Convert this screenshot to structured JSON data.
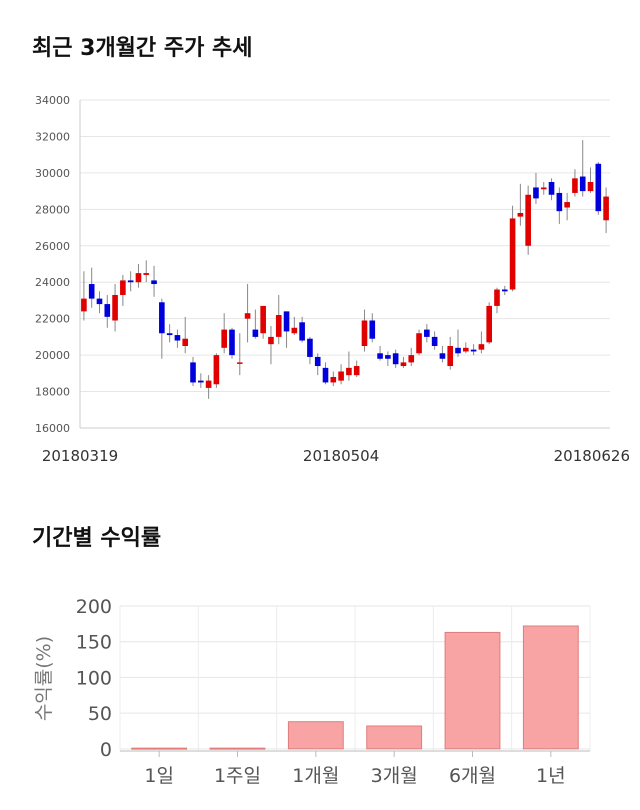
{
  "sections": {
    "price_title": "최근 3개월간 주가 추세",
    "return_title": "기간별 수익률"
  },
  "chart_data": [
    {
      "type": "candlestick",
      "title": "최근 3개월간 주가 추세",
      "ylim": [
        16000,
        34000
      ],
      "yticks": [
        16000,
        18000,
        20000,
        22000,
        24000,
        26000,
        28000,
        30000,
        32000,
        34000
      ],
      "x_tick_labels": [
        "20180319",
        "20180504",
        "20180626"
      ],
      "x_tick_index": [
        2,
        33,
        63
      ],
      "grid": true,
      "up_color": "#e00000",
      "down_color": "#0000dd",
      "candles": [
        [
          22400,
          23100,
          21900,
          24600
        ],
        [
          23900,
          23100,
          22600,
          24800
        ],
        [
          23100,
          22800,
          22300,
          23500
        ],
        [
          22800,
          22100,
          21500,
          23300
        ],
        [
          21900,
          23300,
          21300,
          23900
        ],
        [
          23300,
          24100,
          22700,
          24400
        ],
        [
          24100,
          24000,
          23500,
          24600
        ],
        [
          24000,
          24500,
          23700,
          25000
        ],
        [
          24400,
          24500,
          24000,
          25200
        ],
        [
          24100,
          23900,
          23200,
          24900
        ],
        [
          22900,
          21200,
          19800,
          23100
        ],
        [
          21200,
          21100,
          20700,
          21700
        ],
        [
          21100,
          20800,
          20400,
          21400
        ],
        [
          20500,
          20900,
          20100,
          22100
        ],
        [
          19600,
          18500,
          18300,
          19900
        ],
        [
          18600,
          18500,
          18200,
          19000
        ],
        [
          18200,
          18600,
          17600,
          18900
        ],
        [
          18400,
          20000,
          18200,
          20100
        ],
        [
          20400,
          21400,
          20100,
          22300
        ],
        [
          21400,
          20000,
          19800,
          21500
        ],
        [
          19600,
          19600,
          18900,
          21200
        ],
        [
          22000,
          22300,
          20700,
          23900
        ],
        [
          21400,
          21000,
          20900,
          22500
        ],
        [
          21200,
          22700,
          20900,
          22700
        ],
        [
          20600,
          21000,
          19500,
          21600
        ],
        [
          21000,
          22200,
          20600,
          23300
        ],
        [
          22400,
          21300,
          20400,
          22400
        ],
        [
          21200,
          21500,
          21100,
          22100
        ],
        [
          21800,
          20800,
          20700,
          22100
        ],
        [
          20900,
          19900,
          19500,
          21000
        ],
        [
          19900,
          19400,
          18900,
          20100
        ],
        [
          19300,
          18500,
          18400,
          19600
        ],
        [
          18500,
          18800,
          18300,
          19100
        ],
        [
          18600,
          19100,
          18400,
          19500
        ],
        [
          18900,
          19300,
          18600,
          20200
        ],
        [
          18900,
          19400,
          18800,
          19700
        ],
        [
          20500,
          21900,
          20200,
          22500
        ],
        [
          21900,
          20900,
          20700,
          22300
        ],
        [
          20100,
          19800,
          19700,
          20500
        ],
        [
          20000,
          19800,
          19400,
          20200
        ],
        [
          20100,
          19500,
          19300,
          20300
        ],
        [
          19400,
          19600,
          19300,
          19900
        ],
        [
          19600,
          20000,
          19400,
          20400
        ],
        [
          20100,
          21200,
          20000,
          21400
        ],
        [
          21400,
          21000,
          20700,
          21700
        ],
        [
          21000,
          20500,
          20300,
          21300
        ],
        [
          20100,
          19800,
          19600,
          20500
        ],
        [
          19400,
          20500,
          19200,
          21000
        ],
        [
          20400,
          20100,
          19900,
          21400
        ],
        [
          20200,
          20400,
          20100,
          20700
        ],
        [
          20300,
          20200,
          20000,
          20600
        ],
        [
          20300,
          20600,
          20100,
          21300
        ],
        [
          20700,
          22700,
          20600,
          22900
        ],
        [
          22700,
          23600,
          22300,
          23700
        ],
        [
          23600,
          23500,
          23300,
          23800
        ],
        [
          23600,
          27500,
          23500,
          28200
        ],
        [
          27600,
          27800,
          27100,
          29400
        ],
        [
          26000,
          28800,
          25500,
          29300
        ],
        [
          29200,
          28600,
          28300,
          30000
        ],
        [
          29100,
          29200,
          28800,
          29500
        ],
        [
          29500,
          28800,
          28500,
          29700
        ],
        [
          28900,
          27900,
          27200,
          29200
        ],
        [
          28100,
          28400,
          27400,
          28900
        ],
        [
          28900,
          29700,
          28700,
          30200
        ],
        [
          29800,
          29000,
          28700,
          31800
        ],
        [
          29000,
          29500,
          28900,
          30300
        ],
        [
          30500,
          27900,
          27700,
          30600
        ],
        [
          27400,
          28700,
          26700,
          29200
        ]
      ]
    },
    {
      "type": "bar",
      "categories": [
        "1일",
        "1주일",
        "1개월",
        "3개월",
        "6개월",
        "1년"
      ],
      "values": [
        1,
        1,
        38,
        32,
        163,
        172
      ],
      "ylabel": "수익률(%)",
      "ylim": [
        -3,
        200
      ],
      "yticks": [
        0,
        50,
        100,
        150,
        200
      ],
      "grid": true,
      "bar_color": "#f8a4a4",
      "bar_edge_color": "#e07c7c"
    }
  ]
}
